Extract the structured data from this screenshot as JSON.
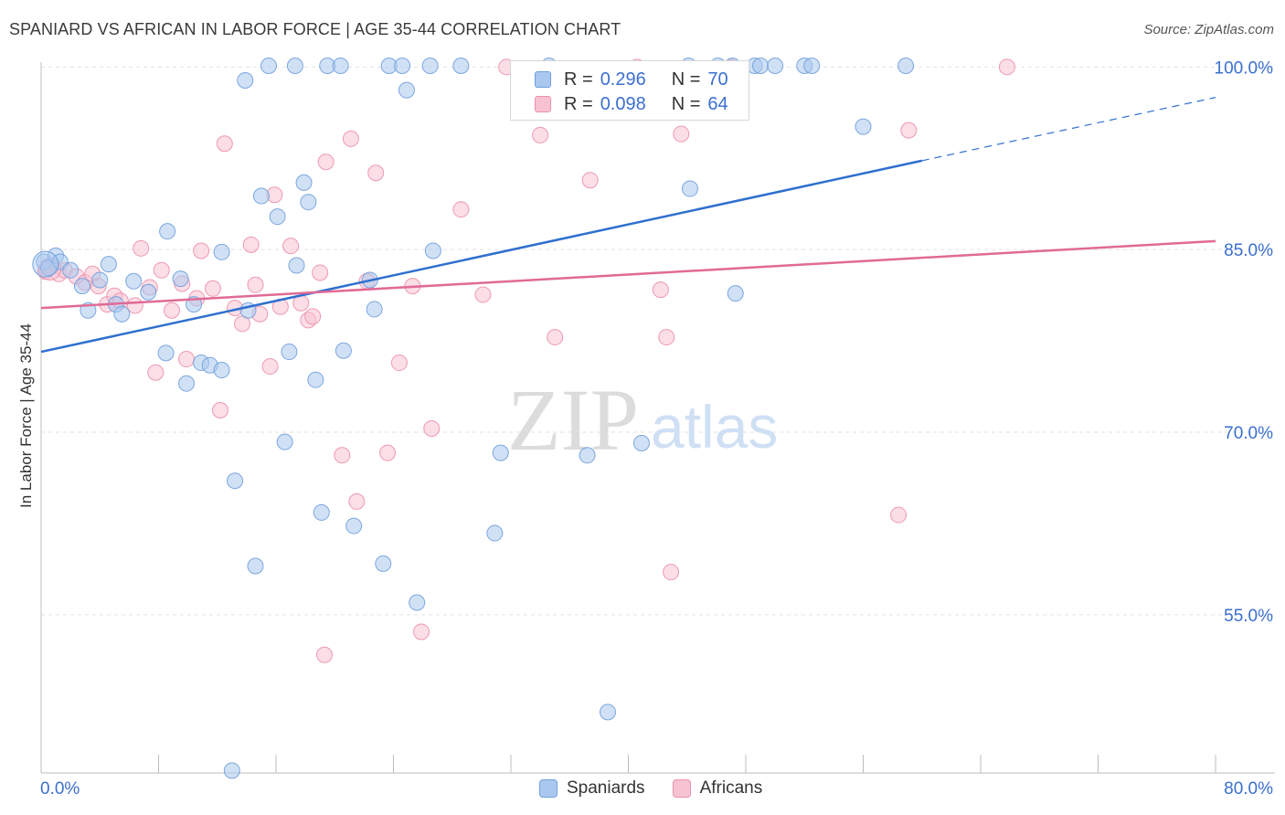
{
  "title": "SPANIARD VS AFRICAN IN LABOR FORCE | AGE 35-44 CORRELATION CHART",
  "source": "Source: ZipAtlas.com",
  "watermark": {
    "zip": "ZIP",
    "atlas": "atlas"
  },
  "legend": {
    "r_label": "R =",
    "n_label": "N =",
    "rows": [
      {
        "r": "0.296",
        "n": "70",
        "color": "#a9c6ee",
        "border": "#7aa3de"
      },
      {
        "r": "0.098",
        "n": "64",
        "color": "#f7c0d0",
        "border": "#ee93ad"
      }
    ]
  },
  "bottom_legend": [
    "Spaniards",
    "Africans"
  ],
  "colors": {
    "blue_fill": "#aac8ef",
    "blue_stroke": "#6f9fdc",
    "blue_line": "#2f6fcf",
    "pink_fill": "#f7c3d2",
    "pink_stroke": "#ec90aa",
    "pink_line": "#e06a96",
    "axis_label": "#3b6fcf",
    "grid": "#e2e2e2"
  },
  "chart_data": {
    "type": "scatter",
    "title": "SPANIARD VS AFRICAN IN LABOR FORCE | AGE 35-44 CORRELATION CHART",
    "xlabel": "",
    "ylabel": "In Labor Force | Age 35-44",
    "x_ticks": [
      "0.0%",
      "80.0%"
    ],
    "y_ticks": [
      "55.0%",
      "70.0%",
      "85.0%",
      "100.0%"
    ],
    "xlim": [
      0,
      80
    ],
    "ylim": [
      42,
      101
    ],
    "grid": true,
    "legend_placement": "top-center",
    "series": [
      {
        "name": "Spaniards",
        "r": 0.296,
        "n": 70,
        "trend": {
          "x0": 0,
          "y0": 76.6,
          "x1": 60,
          "y1": 92.3,
          "dash_to_x": 80,
          "dash_to_y": 97.5
        },
        "points": [
          [
            0.2,
            84.0
          ],
          [
            0.5,
            83.5
          ],
          [
            1.0,
            84.5
          ],
          [
            1.3,
            84.0
          ],
          [
            2.0,
            83.3
          ],
          [
            2.8,
            82.0
          ],
          [
            3.2,
            80.0
          ],
          [
            4.0,
            82.5
          ],
          [
            4.6,
            83.8
          ],
          [
            5.1,
            80.5
          ],
          [
            5.5,
            79.7
          ],
          [
            6.3,
            82.4
          ],
          [
            7.3,
            81.5
          ],
          [
            8.6,
            86.5
          ],
          [
            8.5,
            76.5
          ],
          [
            9.5,
            82.6
          ],
          [
            9.9,
            74.0
          ],
          [
            10.4,
            80.5
          ],
          [
            10.9,
            75.7
          ],
          [
            11.5,
            75.5
          ],
          [
            12.3,
            84.8
          ],
          [
            12.3,
            75.1
          ],
          [
            13.2,
            66.0
          ],
          [
            13.9,
            98.9
          ],
          [
            14.1,
            80.0
          ],
          [
            14.6,
            59.0
          ],
          [
            15.0,
            89.4
          ],
          [
            15.5,
            100.1
          ],
          [
            16.1,
            87.7
          ],
          [
            16.6,
            69.2
          ],
          [
            16.9,
            76.6
          ],
          [
            17.4,
            83.7
          ],
          [
            17.9,
            90.5
          ],
          [
            18.2,
            88.9
          ],
          [
            18.7,
            74.3
          ],
          [
            19.1,
            63.4
          ],
          [
            19.5,
            100.1
          ],
          [
            20.4,
            100.1
          ],
          [
            20.6,
            76.7
          ],
          [
            21.3,
            62.3
          ],
          [
            22.4,
            82.5
          ],
          [
            22.7,
            80.1
          ],
          [
            23.3,
            59.2
          ],
          [
            23.7,
            100.1
          ],
          [
            24.6,
            100.1
          ],
          [
            24.9,
            98.1
          ],
          [
            25.6,
            56.0
          ],
          [
            26.5,
            100.1
          ],
          [
            26.7,
            84.9
          ],
          [
            28.6,
            100.1
          ],
          [
            30.9,
            61.7
          ],
          [
            31.3,
            68.3
          ],
          [
            34.6,
            100.1
          ],
          [
            37.2,
            68.1
          ],
          [
            38.6,
            47.0
          ],
          [
            40.9,
            69.1
          ],
          [
            44.1,
            100.1
          ],
          [
            44.2,
            90.0
          ],
          [
            46.1,
            100.1
          ],
          [
            47.1,
            100.1
          ],
          [
            47.3,
            81.4
          ],
          [
            48.6,
            100.1
          ],
          [
            49.0,
            100.1
          ],
          [
            50.0,
            100.1
          ],
          [
            52.0,
            100.1
          ],
          [
            56.0,
            95.1
          ],
          [
            58.9,
            100.1
          ],
          [
            13.0,
            42.2
          ],
          [
            17.3,
            100.1
          ],
          [
            52.5,
            100.1
          ]
        ]
      },
      {
        "name": "Africans",
        "r": 0.098,
        "n": 64,
        "trend": {
          "x0": 0,
          "y0": 80.2,
          "x1": 80,
          "y1": 85.7
        },
        "points": [
          [
            0.3,
            83.2
          ],
          [
            0.7,
            83.6
          ],
          [
            1.2,
            83.0
          ],
          [
            1.6,
            83.3
          ],
          [
            2.4,
            82.8
          ],
          [
            3.0,
            82.3
          ],
          [
            3.5,
            83.0
          ],
          [
            3.9,
            82.0
          ],
          [
            4.5,
            80.5
          ],
          [
            5.0,
            81.2
          ],
          [
            5.4,
            80.8
          ],
          [
            6.4,
            80.4
          ],
          [
            6.8,
            85.1
          ],
          [
            7.4,
            81.9
          ],
          [
            7.8,
            74.9
          ],
          [
            8.2,
            83.3
          ],
          [
            8.9,
            80.0
          ],
          [
            9.6,
            82.2
          ],
          [
            9.9,
            76.0
          ],
          [
            10.6,
            81.0
          ],
          [
            10.9,
            84.9
          ],
          [
            11.7,
            81.8
          ],
          [
            12.2,
            71.8
          ],
          [
            12.5,
            93.7
          ],
          [
            13.2,
            80.2
          ],
          [
            13.7,
            78.9
          ],
          [
            14.3,
            85.4
          ],
          [
            14.6,
            82.1
          ],
          [
            14.9,
            79.7
          ],
          [
            15.6,
            75.4
          ],
          [
            15.9,
            89.5
          ],
          [
            16.3,
            80.3
          ],
          [
            17.0,
            85.3
          ],
          [
            17.7,
            80.6
          ],
          [
            18.2,
            79.2
          ],
          [
            18.5,
            79.5
          ],
          [
            19.0,
            83.1
          ],
          [
            19.4,
            92.2
          ],
          [
            20.5,
            68.1
          ],
          [
            21.1,
            94.1
          ],
          [
            21.5,
            64.3
          ],
          [
            22.2,
            82.4
          ],
          [
            22.8,
            91.3
          ],
          [
            23.6,
            68.3
          ],
          [
            24.4,
            75.7
          ],
          [
            25.3,
            82.0
          ],
          [
            25.9,
            53.6
          ],
          [
            26.6,
            70.3
          ],
          [
            28.6,
            88.3
          ],
          [
            30.1,
            81.3
          ],
          [
            31.7,
            100.0
          ],
          [
            34.0,
            94.4
          ],
          [
            35.0,
            77.8
          ],
          [
            37.4,
            90.7
          ],
          [
            40.6,
            100.0
          ],
          [
            42.2,
            81.7
          ],
          [
            42.6,
            77.8
          ],
          [
            42.9,
            58.5
          ],
          [
            43.6,
            94.5
          ],
          [
            58.4,
            63.2
          ],
          [
            59.1,
            94.8
          ],
          [
            65.8,
            100.0
          ],
          [
            19.3,
            51.7
          ],
          [
            47.0,
            100.0
          ]
        ]
      }
    ]
  }
}
